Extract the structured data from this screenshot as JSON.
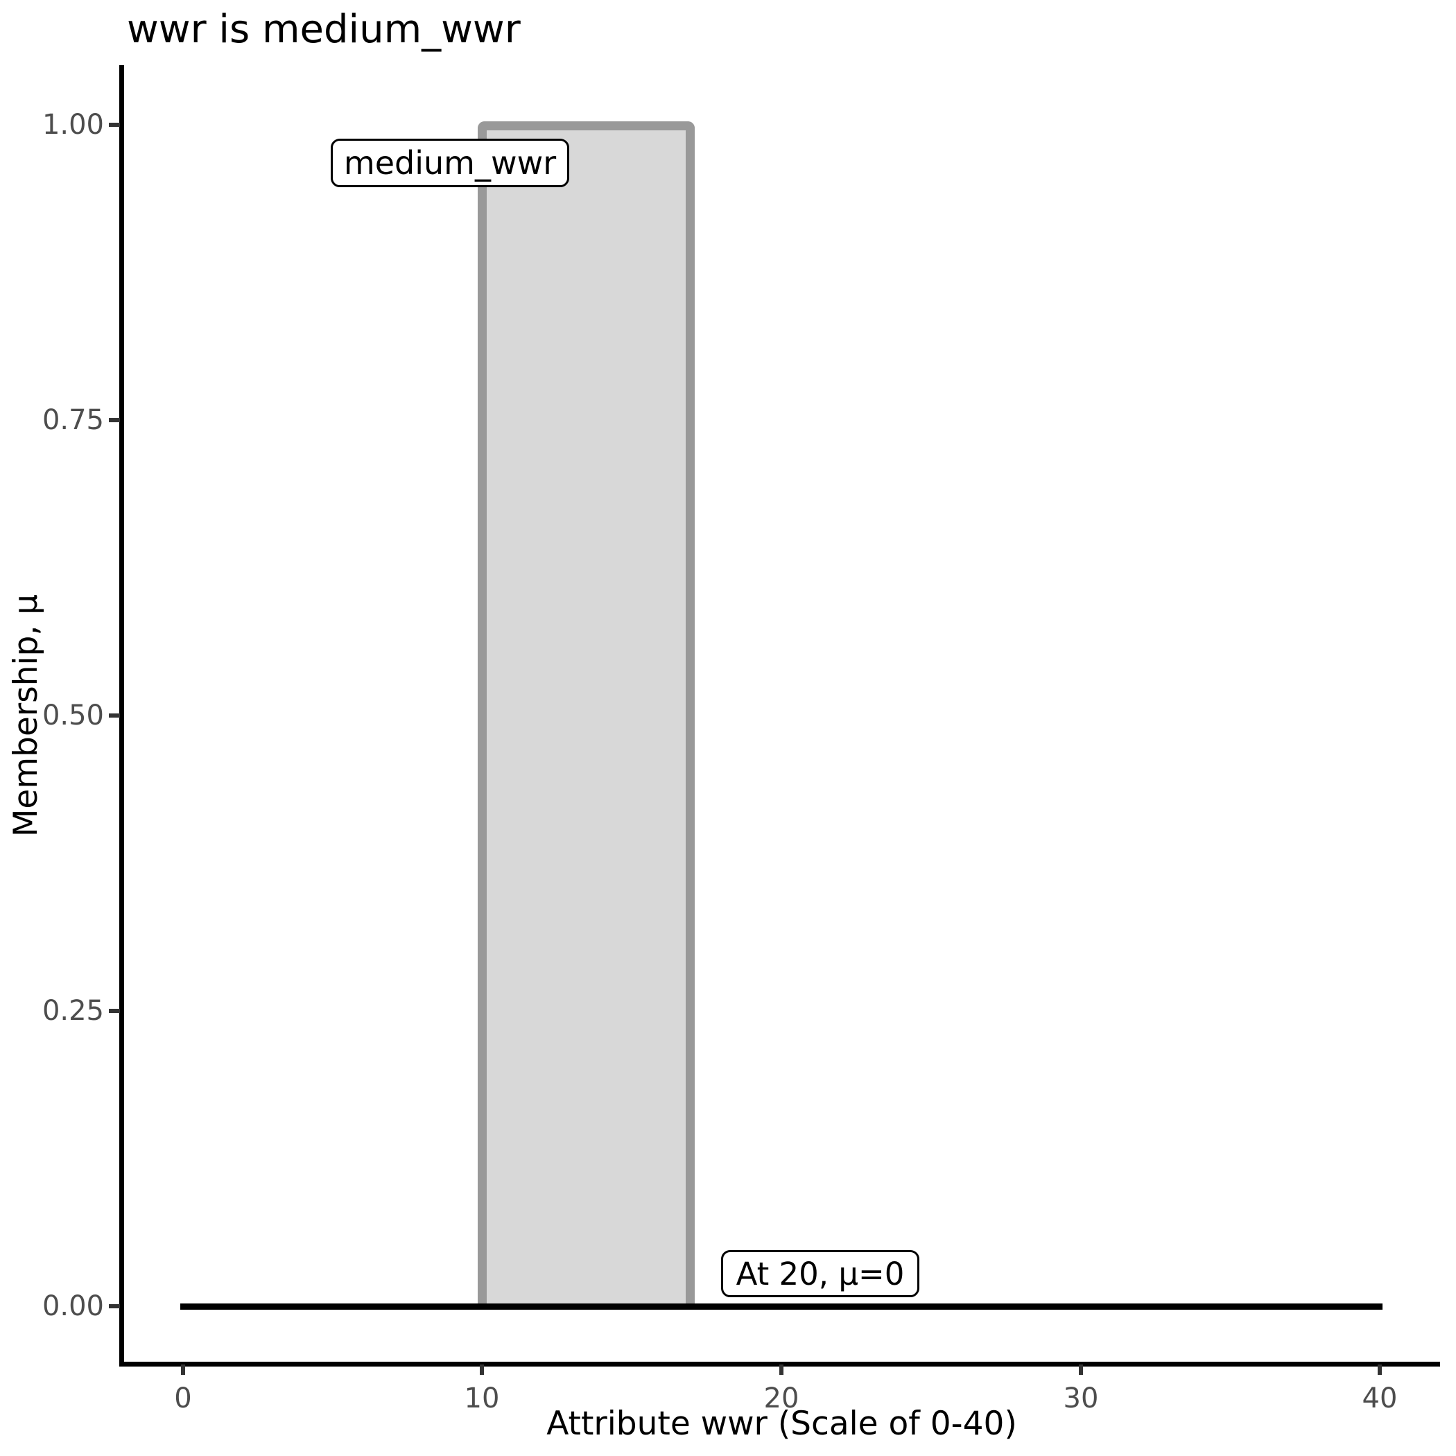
{
  "chart_data": {
    "type": "area",
    "title": "wwr is medium_wwr",
    "xlabel": "Attribute wwr (Scale of 0-40)",
    "ylabel": "Membership, μ",
    "xlim": [
      0,
      40
    ],
    "ylim": [
      0,
      1
    ],
    "grid": false,
    "legend": false,
    "theme": "classic-white-no-gridlines",
    "x_tick_values": [
      0,
      10,
      20,
      30,
      40
    ],
    "x_tick_labels": [
      "0",
      "10",
      "20",
      "30",
      "40"
    ],
    "y_tick_values": [
      1.0,
      0.75,
      0.5,
      0.25,
      0.0
    ],
    "y_tick_labels": [
      "1.00",
      "0.75",
      "0.50",
      "0.25",
      "0.00"
    ],
    "series": [
      {
        "name": "medium_wwr",
        "description": "fuzzy membership function drawn as rectangle at full membership",
        "x": [
          0,
          10,
          10,
          17,
          17,
          40
        ],
        "mu": [
          0,
          0,
          1,
          1,
          0,
          0
        ],
        "fill": "#d8d8d8",
        "stroke": "#999999"
      }
    ],
    "baseline": {
      "y": 0,
      "x_from": 0,
      "x_to": 40,
      "color": "#000000"
    },
    "annotations": [
      {
        "text": "medium_wwr",
        "x": 10,
        "y": 1,
        "style": "boxed-white-rounded"
      },
      {
        "text": "At 20, μ=0",
        "x": 20,
        "y": 0,
        "style": "boxed-white-rounded"
      }
    ]
  },
  "colors": {
    "background": "#ffffff",
    "axis_line": "#000000",
    "tick_mark": "#333333",
    "tick_label": "#4d4d4d",
    "title_text": "#000000",
    "shape_fill": "#d8d8d8",
    "shape_stroke": "#999999"
  }
}
